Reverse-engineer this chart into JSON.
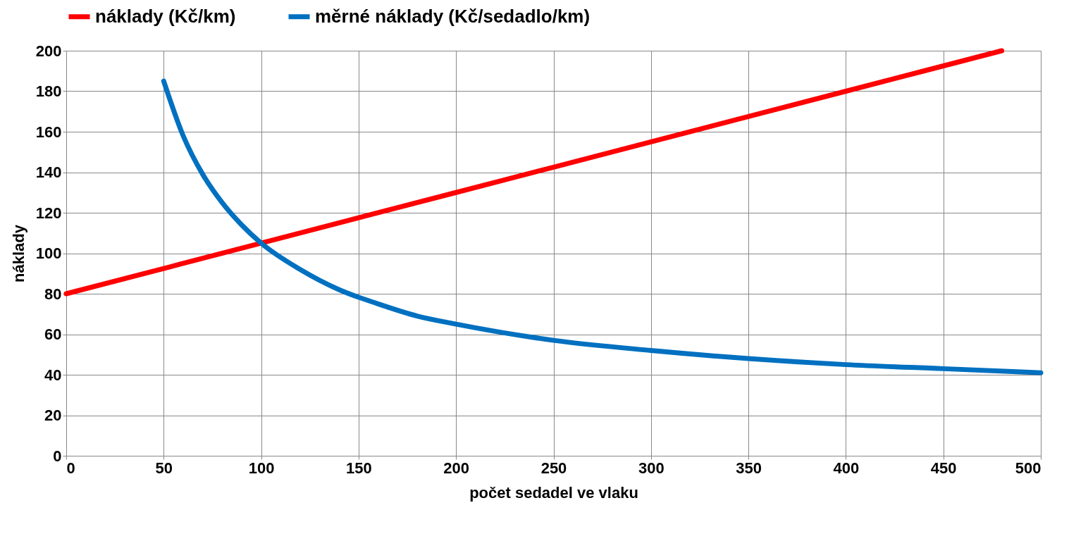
{
  "chart_data": {
    "type": "line",
    "xlabel": "počet sedadel ve vlaku",
    "ylabel": "náklady",
    "xlim": [
      0,
      500
    ],
    "xticks": [
      0,
      50,
      100,
      150,
      200,
      250,
      300,
      350,
      400,
      450,
      500
    ],
    "ylim": [
      0,
      200
    ],
    "yticks": [
      0,
      20,
      40,
      60,
      80,
      100,
      120,
      140,
      160,
      180,
      200
    ],
    "grid": true,
    "legend": "top",
    "marker": "none",
    "line_style": "solid",
    "series": [
      {
        "name": "náklady (Kč/km)",
        "color": "#ff0000",
        "x": [
          0,
          100,
          200,
          300,
          400,
          480
        ],
        "values": [
          80,
          105,
          130,
          155,
          180,
          200
        ]
      },
      {
        "name": "měrné náklady (Kč/sedadlo/km)",
        "color": "#0070c0",
        "x": [
          50,
          60,
          70,
          80,
          90,
          100,
          120,
          140,
          160,
          180,
          200,
          250,
          300,
          350,
          400,
          450,
          500
        ],
        "values": [
          185,
          158,
          139,
          125,
          114,
          105,
          92,
          82,
          75,
          69,
          65,
          57,
          52,
          48,
          45,
          43,
          41
        ]
      }
    ]
  }
}
